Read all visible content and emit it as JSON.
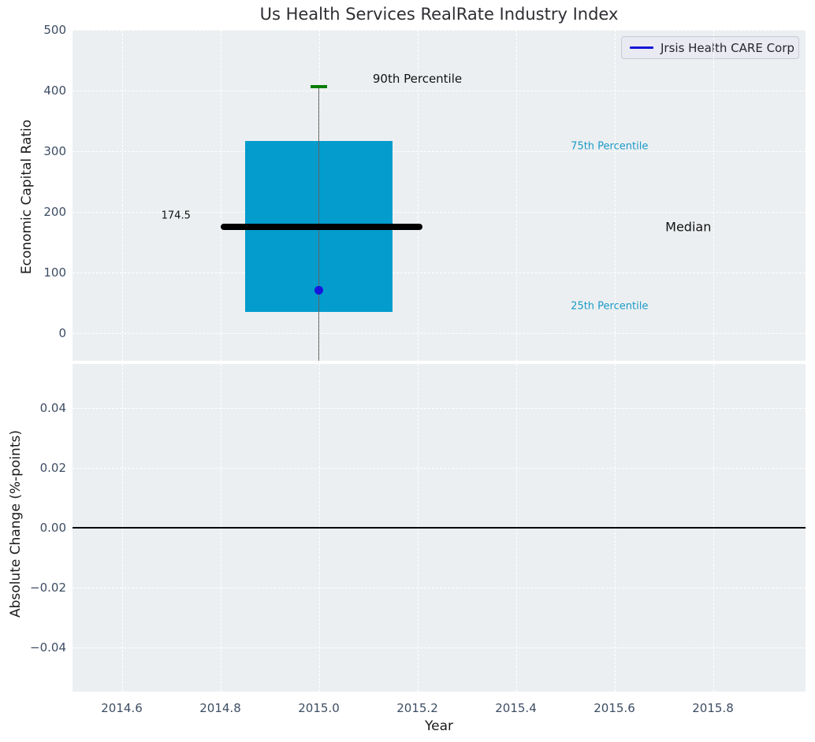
{
  "figure": {
    "background": "#ffffff",
    "axes_background": "#eceff1",
    "tick_color": "#3d4d63"
  },
  "chart_data": [
    {
      "type": "boxplot",
      "title": "Us Health Services RealRate Industry Index",
      "ylabel": "Economic Capital Ratio",
      "xlim": [
        2014.5,
        2015.988
      ],
      "ylim": [
        -46,
        500
      ],
      "grid": true,
      "xgrid_values": [
        2014.6,
        2014.8,
        2015.0,
        2015.2,
        2015.4,
        2015.6,
        2015.8
      ],
      "yticks": {
        "values": [
          0,
          100,
          200,
          300,
          400,
          500
        ],
        "labels": [
          "0",
          "100",
          "200",
          "300",
          "400",
          "500"
        ]
      },
      "box": {
        "x_center": 2015.0,
        "x_left": 2014.85,
        "x_right": 2015.15,
        "q25": 34,
        "median": 174.5,
        "q75": 317,
        "p90": 407,
        "whisker_top": 407,
        "whisker_bottom_clipped_at": -46,
        "median_x_left": 2014.8,
        "median_x_right": 2015.21,
        "cap_halfwidth": 0.017,
        "box_color": "#039ccd",
        "median_color": "#000000",
        "cap_color": "#067d06",
        "whisker_color": "#636363"
      },
      "points": [
        {
          "name": "Jrsis Health CARE Corp",
          "x": 2015.0,
          "y": 70,
          "color": "#1616dd",
          "radius": 5.5
        }
      ],
      "annotations": [
        {
          "id": "p90-label",
          "text": "90th Percentile",
          "x": 2015.2,
          "y": 420,
          "color": "#111111",
          "size": 15
        },
        {
          "id": "median-value-label",
          "text": "174.5",
          "x": 2014.71,
          "y": 193,
          "color": "#111111",
          "size": 13
        },
        {
          "id": "p75-label",
          "text": "75th Percentile",
          "x": 2015.59,
          "y": 307,
          "color": "#1a9bc9",
          "size": 13
        },
        {
          "id": "median-label",
          "text": "Median",
          "x": 2015.75,
          "y": 175,
          "color": "#111111",
          "size": 16
        },
        {
          "id": "p25-label",
          "text": "25th Percentile",
          "x": 2015.59,
          "y": 44,
          "color": "#1a9bc9",
          "size": 13
        }
      ],
      "legend": {
        "label": "Jrsis Health CARE Corp",
        "line_color": "#1414d6",
        "position": "upper right"
      }
    },
    {
      "type": "line",
      "ylabel": "Absolute Change (%-points)",
      "xlabel": "Year",
      "xlim": [
        2014.5,
        2015.988
      ],
      "ylim": [
        -0.0547,
        0.0547
      ],
      "grid": true,
      "xticks": {
        "values": [
          2014.6,
          2014.8,
          2015.0,
          2015.2,
          2015.4,
          2015.6,
          2015.8
        ],
        "labels": [
          "2014.6",
          "2014.8",
          "2015.0",
          "2015.2",
          "2015.4",
          "2015.6",
          "2015.8"
        ]
      },
      "yticks": {
        "values": [
          0.04,
          0.02,
          0.0,
          -0.02,
          -0.04
        ],
        "labels": [
          "0.04",
          "0.02",
          "0.00",
          "−0.02",
          "−0.04"
        ]
      },
      "zero_line": {
        "y": 0.0,
        "color": "#000000"
      },
      "series": []
    }
  ]
}
